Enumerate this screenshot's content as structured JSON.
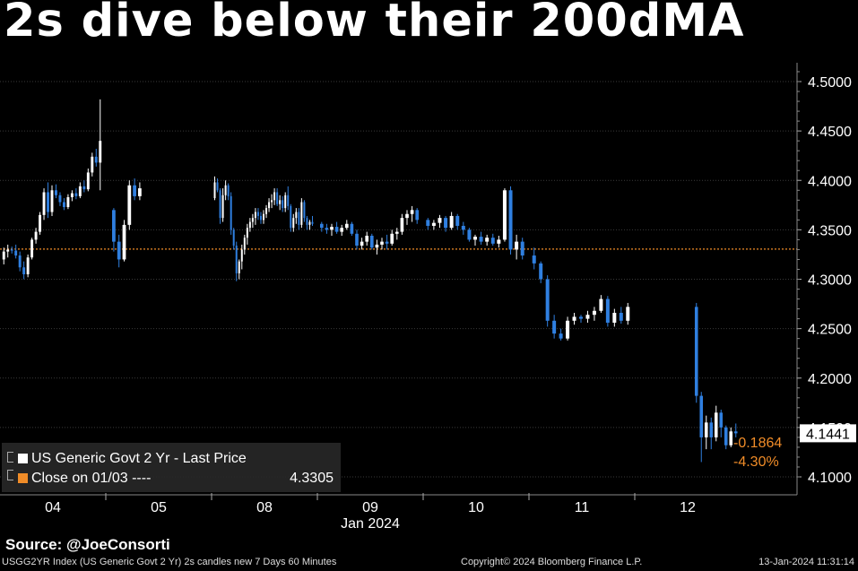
{
  "title": "2s dive below their 200dMA",
  "source": "Source: @JoeConsorti",
  "footer": {
    "left": "USGG2YR Index (US Generic Govt 2 Yr) 2s candles new 7 Days 60 Minutes",
    "center": "Copyright© 2024 Bloomberg Finance L.P.",
    "right": "13-Jan-2024 11:31:14"
  },
  "legend": {
    "series_label": "US Generic Govt 2 Yr - Last Price",
    "close_label": "Close on 01/03 ----",
    "close_value": "4.3305"
  },
  "colors": {
    "up": "#ffffff",
    "down": "#2f7fe0",
    "close_line": "#f08c28",
    "last_label_bg": "#ffffff"
  },
  "chart_data": {
    "type": "candlestick",
    "y_ticks": [
      "4.1000",
      "4.1500",
      "4.2000",
      "4.2500",
      "4.3000",
      "4.3500",
      "4.4000",
      "4.4500",
      "4.5000"
    ],
    "ylim": [
      4.085,
      4.52
    ],
    "x_ticks": [
      "04",
      "05",
      "08",
      "09",
      "10",
      "11",
      "12"
    ],
    "x_sublabel": "Jan 2024",
    "reference_line": {
      "label": "Close on 01/03",
      "value": 4.3305
    },
    "last_value": "4.1441",
    "change_abs": "-0.1864",
    "change_pct": "-4.30%",
    "sessions": [
      {
        "label": "04",
        "candles": [
          [
            4.32,
            4.332,
            4.315,
            4.328
          ],
          [
            4.328,
            4.335,
            4.322,
            4.33
          ],
          [
            4.33,
            4.333,
            4.326,
            4.329
          ],
          [
            4.329,
            4.335,
            4.321,
            4.324
          ],
          [
            4.324,
            4.328,
            4.308,
            4.312
          ],
          [
            4.312,
            4.318,
            4.3,
            4.305
          ],
          [
            4.305,
            4.325,
            4.302,
            4.322
          ],
          [
            4.322,
            4.342,
            4.32,
            4.34
          ],
          [
            4.34,
            4.352,
            4.336,
            4.348
          ],
          [
            4.348,
            4.368,
            4.345,
            4.365
          ],
          [
            4.365,
            4.392,
            4.36,
            4.388
          ],
          [
            4.388,
            4.398,
            4.362,
            4.368
          ],
          [
            4.368,
            4.395,
            4.364,
            4.39
          ],
          [
            4.39,
            4.396,
            4.382,
            4.385
          ],
          [
            4.385,
            4.388,
            4.374,
            4.378
          ],
          [
            4.378,
            4.382,
            4.37,
            4.373
          ],
          [
            4.373,
            4.386,
            4.371,
            4.383
          ],
          [
            4.383,
            4.39,
            4.379,
            4.387
          ],
          [
            4.387,
            4.392,
            4.381,
            4.384
          ],
          [
            4.384,
            4.398,
            4.382,
            4.394
          ],
          [
            4.394,
            4.4,
            4.388,
            4.391
          ],
          [
            4.391,
            4.412,
            4.389,
            4.408
          ],
          [
            4.408,
            4.428,
            4.404,
            4.424
          ],
          [
            4.424,
            4.432,
            4.414,
            4.418
          ],
          [
            4.418,
            4.482,
            4.39,
            4.44
          ]
        ]
      },
      {
        "label": "05",
        "candles": [
          [
            4.37,
            4.372,
            4.328,
            4.338
          ],
          [
            4.338,
            4.345,
            4.312,
            4.32
          ],
          [
            4.32,
            4.36,
            4.318,
            4.355
          ],
          [
            4.355,
            4.4,
            4.35,
            4.395
          ],
          [
            4.395,
            4.402,
            4.38,
            4.384
          ],
          [
            4.384,
            4.398,
            4.38,
            4.392
          ]
        ]
      },
      {
        "label": "08",
        "candles": [
          [
            4.382,
            4.404,
            4.38,
            4.398
          ],
          [
            4.398,
            4.402,
            4.388,
            4.39
          ],
          [
            4.39,
            4.392,
            4.356,
            4.362
          ],
          [
            4.362,
            4.392,
            4.358,
            4.385
          ],
          [
            4.385,
            4.4,
            4.38,
            4.395
          ],
          [
            4.395,
            4.397,
            4.38,
            4.384
          ],
          [
            4.384,
            4.388,
            4.345,
            4.35
          ],
          [
            4.35,
            4.352,
            4.33,
            4.334
          ],
          [
            4.334,
            4.338,
            4.298,
            4.306
          ],
          [
            4.306,
            4.32,
            4.3,
            4.318
          ],
          [
            4.318,
            4.335,
            4.31,
            4.33
          ],
          [
            4.33,
            4.345,
            4.325,
            4.342
          ],
          [
            4.342,
            4.356,
            4.335,
            4.352
          ],
          [
            4.352,
            4.362,
            4.348,
            4.358
          ],
          [
            4.358,
            4.366,
            4.352,
            4.362
          ],
          [
            4.362,
            4.372,
            4.355,
            4.368
          ],
          [
            4.368,
            4.372,
            4.36,
            4.364
          ],
          [
            4.364,
            4.368,
            4.356,
            4.36
          ],
          [
            4.36,
            4.37,
            4.356,
            4.366
          ],
          [
            4.366,
            4.375,
            4.362,
            4.372
          ],
          [
            4.372,
            4.382,
            4.368,
            4.378
          ],
          [
            4.378,
            4.386,
            4.372,
            4.38
          ],
          [
            4.38,
            4.392,
            4.375,
            4.388
          ],
          [
            4.388,
            4.392,
            4.374,
            4.376
          ],
          [
            4.376,
            4.385,
            4.37,
            4.38
          ],
          [
            4.38,
            4.384,
            4.368,
            4.372
          ],
          [
            4.372,
            4.388,
            4.368,
            4.385
          ],
          [
            4.385,
            4.394,
            4.37,
            4.374
          ],
          [
            4.374,
            4.376,
            4.348,
            4.352
          ],
          [
            4.352,
            4.366,
            4.348,
            4.362
          ],
          [
            4.362,
            4.372,
            4.356,
            4.368
          ],
          [
            4.368,
            4.372,
            4.35,
            4.355
          ],
          [
            4.355,
            4.382,
            4.352,
            4.378
          ],
          [
            4.378,
            4.38,
            4.358,
            4.362
          ],
          [
            4.362,
            4.364,
            4.35,
            4.355
          ],
          [
            4.355,
            4.36,
            4.35,
            4.358
          ],
          [
            4.358,
            4.364,
            4.354,
            4.356
          ]
        ]
      },
      {
        "label": "09",
        "candles": [
          [
            4.356,
            4.358,
            4.348,
            4.352
          ],
          [
            4.352,
            4.356,
            4.346,
            4.35
          ],
          [
            4.35,
            4.356,
            4.344,
            4.353
          ],
          [
            4.353,
            4.358,
            4.346,
            4.348
          ],
          [
            4.348,
            4.355,
            4.344,
            4.352
          ],
          [
            4.352,
            4.36,
            4.35,
            4.356
          ],
          [
            4.356,
            4.358,
            4.344,
            4.346
          ],
          [
            4.346,
            4.35,
            4.33,
            4.334
          ],
          [
            4.334,
            4.342,
            4.33,
            4.338
          ],
          [
            4.338,
            4.348,
            4.334,
            4.344
          ],
          [
            4.344,
            4.346,
            4.33,
            4.332
          ],
          [
            4.332,
            4.34,
            4.325,
            4.335
          ],
          [
            4.335,
            4.342,
            4.33,
            4.338
          ],
          [
            4.338,
            4.345,
            4.33,
            4.336
          ],
          [
            4.336,
            4.35,
            4.334,
            4.346
          ],
          [
            4.346,
            4.352,
            4.34,
            4.348
          ],
          [
            4.348,
            4.366,
            4.345,
            4.362
          ],
          [
            4.362,
            4.37,
            4.355,
            4.366
          ],
          [
            4.366,
            4.374,
            4.358,
            4.37
          ],
          [
            4.37,
            4.372,
            4.356,
            4.36
          ]
        ]
      },
      {
        "label": "10",
        "candles": [
          [
            4.36,
            4.362,
            4.35,
            4.354
          ],
          [
            4.354,
            4.36,
            4.35,
            4.357
          ],
          [
            4.357,
            4.365,
            4.352,
            4.362
          ],
          [
            4.362,
            4.364,
            4.348,
            4.352
          ],
          [
            4.352,
            4.368,
            4.35,
            4.364
          ],
          [
            4.364,
            4.366,
            4.35,
            4.354
          ],
          [
            4.354,
            4.358,
            4.345,
            4.35
          ],
          [
            4.35,
            4.352,
            4.338,
            4.34
          ],
          [
            4.34,
            4.345,
            4.334,
            4.343
          ],
          [
            4.343,
            4.348,
            4.335,
            4.338
          ],
          [
            4.338,
            4.345,
            4.334,
            4.342
          ],
          [
            4.342,
            4.346,
            4.334,
            4.336
          ],
          [
            4.336,
            4.344,
            4.332,
            4.34
          ],
          [
            4.34,
            4.392,
            4.338,
            4.39
          ],
          [
            4.39,
            4.394,
            4.325,
            4.33
          ],
          [
            4.33,
            4.345,
            4.32,
            4.338
          ],
          [
            4.338,
            4.342,
            4.32,
            4.324
          ]
        ]
      },
      {
        "label": "11",
        "candles": [
          [
            4.324,
            4.332,
            4.31,
            4.316
          ],
          [
            4.316,
            4.318,
            4.296,
            4.3
          ],
          [
            4.3,
            4.304,
            4.252,
            4.258
          ],
          [
            4.258,
            4.264,
            4.24,
            4.245
          ],
          [
            4.245,
            4.25,
            4.238,
            4.24
          ],
          [
            4.24,
            4.262,
            4.238,
            4.258
          ],
          [
            4.258,
            4.266,
            4.254,
            4.262
          ],
          [
            4.262,
            4.264,
            4.256,
            4.26
          ],
          [
            4.26,
            4.268,
            4.256,
            4.264
          ],
          [
            4.264,
            4.272,
            4.258,
            4.268
          ],
          [
            4.268,
            4.284,
            4.266,
            4.28
          ],
          [
            4.28,
            4.283,
            4.252,
            4.256
          ],
          [
            4.256,
            4.27,
            4.252,
            4.266
          ],
          [
            4.266,
            4.272,
            4.255,
            4.258
          ],
          [
            4.258,
            4.276,
            4.254,
            4.272
          ]
        ]
      },
      {
        "label": "12",
        "candles": [
          [
            4.272,
            4.276,
            4.175,
            4.182
          ],
          [
            4.182,
            4.186,
            4.115,
            4.14
          ],
          [
            4.14,
            4.162,
            4.128,
            4.155
          ],
          [
            4.155,
            4.16,
            4.128,
            4.14
          ],
          [
            4.14,
            4.172,
            4.136,
            4.165
          ],
          [
            4.165,
            4.168,
            4.14,
            4.15
          ],
          [
            4.15,
            4.152,
            4.128,
            4.132
          ],
          [
            4.132,
            4.15,
            4.13,
            4.146
          ],
          [
            4.146,
            4.154,
            4.14,
            4.1441
          ]
        ]
      }
    ]
  }
}
